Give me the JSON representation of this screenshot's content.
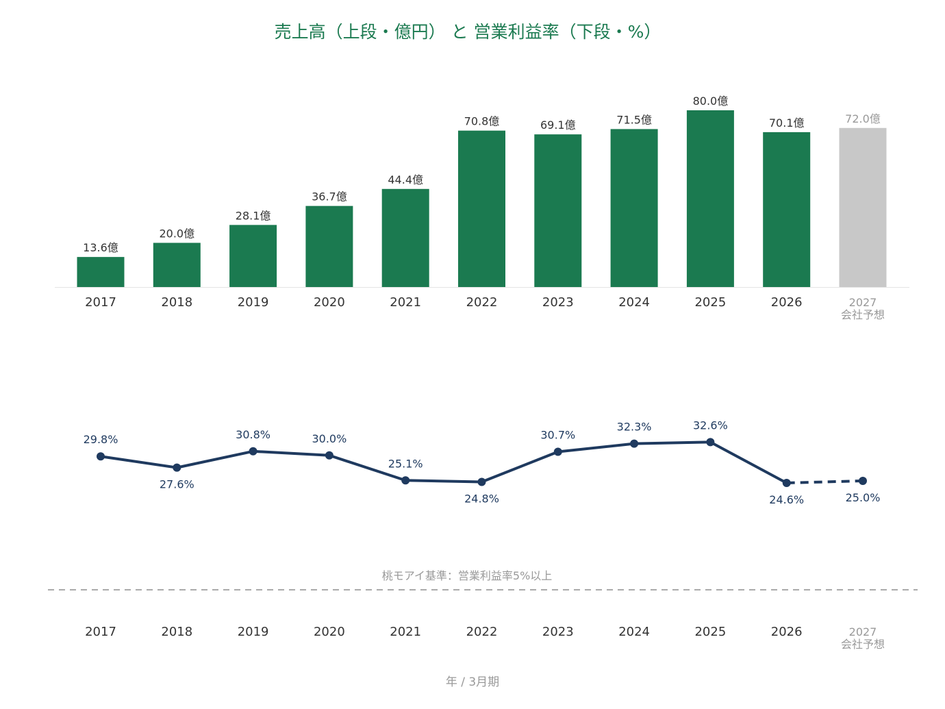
{
  "chart_data": {
    "type": "bar+line",
    "title": "売上高（上段・億円） と 営業利益率（下段・%）",
    "xlabel": "年 / 3月期",
    "categories": [
      "2017",
      "2018",
      "2019",
      "2020",
      "2021",
      "2022",
      "2023",
      "2024",
      "2025",
      "2026",
      "2027"
    ],
    "forecast_sublabel": "会社予想",
    "forecast_index": 10,
    "sales": {
      "values": [
        13.6,
        20.0,
        28.1,
        36.7,
        44.4,
        70.8,
        69.1,
        71.5,
        80.0,
        70.1,
        72.0
      ],
      "labels": [
        "13.6億",
        "20.0億",
        "28.1億",
        "36.7億",
        "44.4億",
        "70.8億",
        "69.1億",
        "71.5億",
        "80.0億",
        "70.1億",
        "72.0億"
      ],
      "ylim": [
        0,
        80
      ],
      "color": "#1b7a50",
      "forecast_color": "#c8c8c8"
    },
    "margin": {
      "values": [
        29.8,
        27.6,
        30.8,
        30.0,
        25.1,
        24.8,
        30.7,
        32.3,
        32.6,
        24.6,
        25.0
      ],
      "labels": [
        "29.8%",
        "27.6%",
        "30.8%",
        "30.0%",
        "25.1%",
        "24.8%",
        "30.7%",
        "32.3%",
        "32.6%",
        "24.6%",
        "25.0%"
      ],
      "label_position": [
        "above",
        "below",
        "above",
        "above",
        "above",
        "below",
        "above",
        "above",
        "above",
        "below",
        "below"
      ],
      "color": "#1f3a5f",
      "reference": {
        "value": 5,
        "label": "桃モアイ基準：営業利益率5%以上"
      }
    }
  }
}
